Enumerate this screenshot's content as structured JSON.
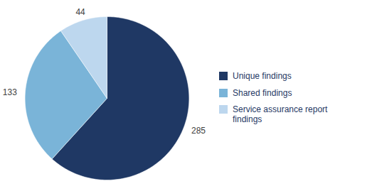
{
  "chart_data": {
    "type": "pie",
    "categories": [
      "Unique findings",
      "Shared findings",
      "Service assurance report\nfindings"
    ],
    "values": [
      285,
      133,
      44
    ],
    "colors": [
      "#1f3864",
      "#7ab4d8",
      "#bdd7ee"
    ],
    "data_labels": true,
    "legend": "right"
  }
}
